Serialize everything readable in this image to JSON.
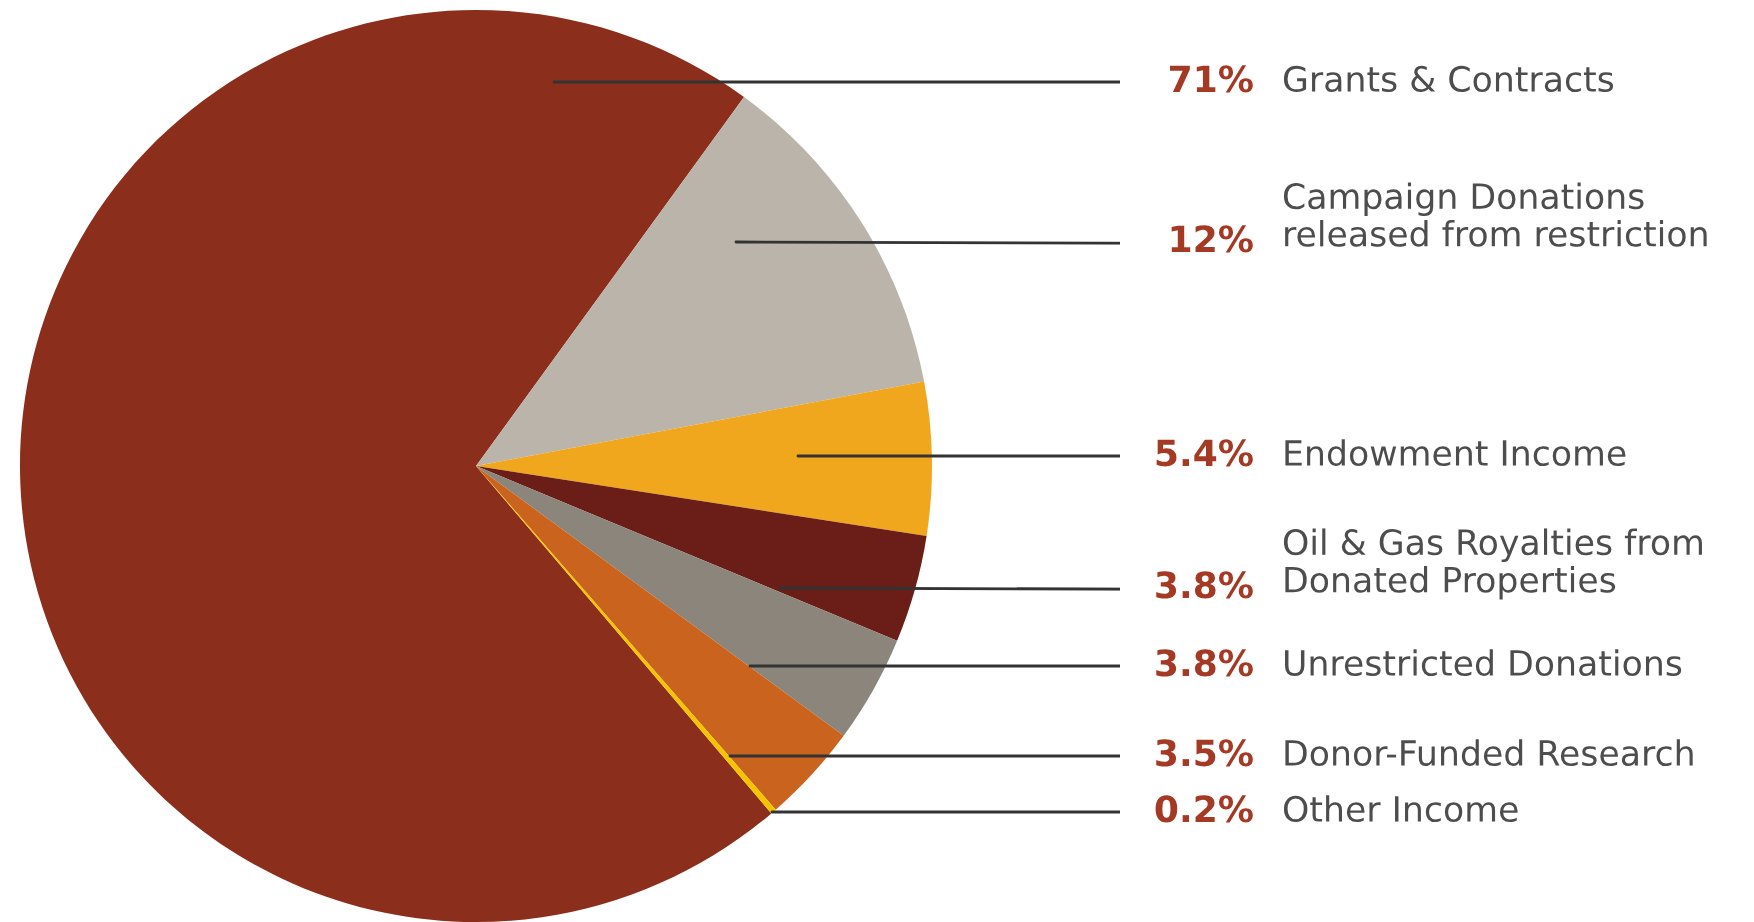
{
  "chart_data": {
    "type": "pie",
    "categories": [
      "Grants & Contracts",
      "Campaign Donations\nreleased from restriction",
      "Endowment Income",
      "Oil & Gas Royalties from\nDonated Properties",
      "Unrestricted Donations",
      "Donor-Funded Research",
      "Other Income"
    ],
    "values": [
      71,
      12,
      5.4,
      3.8,
      3.8,
      3.5,
      0.2
    ],
    "value_labels": [
      "71%",
      "12%",
      "5.4%",
      "3.8%",
      "3.8%",
      "3.5%",
      "0.2%"
    ],
    "colors": [
      "#8c2e1c",
      "#bab4aa",
      "#f0a71e",
      "#6b1d17",
      "#8c857b",
      "#c9631d",
      "#f5c400"
    ]
  }
}
